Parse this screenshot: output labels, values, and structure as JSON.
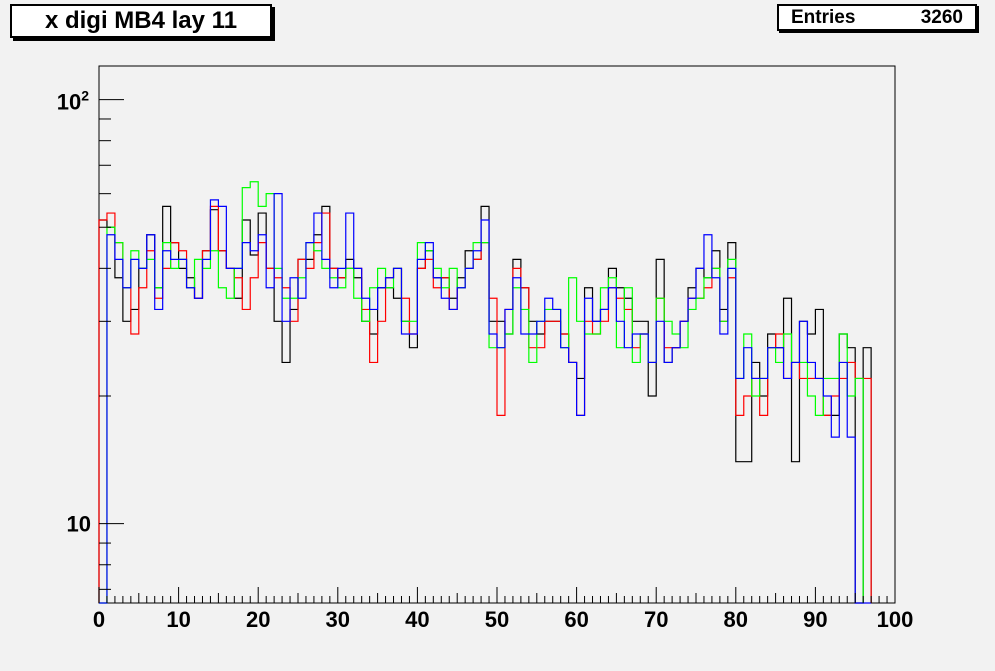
{
  "chart_data": {
    "type": "histogram-step",
    "title": "x digi MB4 lay 11",
    "stats": {
      "label": "Entries",
      "value": "3260"
    },
    "x_axis": {
      "range": [
        0,
        100
      ],
      "ticks": [
        0,
        10,
        20,
        30,
        40,
        50,
        60,
        70,
        80,
        90,
        100
      ],
      "tick_labels": [
        "0",
        "10",
        "20",
        "30",
        "40",
        "50",
        "60",
        "70",
        "80",
        "90",
        "100"
      ]
    },
    "y_axis": {
      "scale": "log",
      "range": [
        6.5,
        120
      ],
      "tick_labels": [
        {
          "value": 100,
          "base": "10",
          "exp": "2"
        },
        {
          "value": 10,
          "label": "10"
        }
      ]
    },
    "bin_start": 0,
    "bin_width": 1,
    "series": [
      {
        "color": "#000000",
        "values": [
          52,
          50,
          38,
          30,
          32,
          40,
          48,
          36,
          56,
          46,
          40,
          38,
          34,
          44,
          55,
          44,
          40,
          34,
          52,
          43,
          54,
          40,
          30,
          24,
          32,
          42,
          42,
          48,
          56,
          40,
          38,
          42,
          38,
          30,
          28,
          36,
          36,
          34,
          30,
          26,
          40,
          44,
          38,
          38,
          34,
          38,
          44,
          42,
          56,
          30,
          30,
          28,
          42,
          36,
          30,
          28,
          30,
          30,
          28,
          24,
          22,
          36,
          30,
          32,
          40,
          36,
          34,
          30,
          30,
          20,
          42,
          24,
          26,
          30,
          36,
          40,
          38,
          44,
          32,
          46,
          14,
          14,
          24,
          20,
          28,
          26,
          34,
          14,
          30,
          28,
          32,
          18,
          18,
          28,
          26,
          6,
          26
        ]
      },
      {
        "color": "#ff0000",
        "values": [
          52,
          54,
          46,
          36,
          28,
          36,
          44,
          34,
          40,
          46,
          44,
          36,
          34,
          44,
          56,
          44,
          40,
          38,
          32,
          38,
          46,
          40,
          38,
          36,
          30,
          42,
          40,
          46,
          54,
          40,
          38,
          40,
          40,
          32,
          24,
          30,
          38,
          40,
          34,
          28,
          40,
          42,
          36,
          38,
          32,
          36,
          40,
          42,
          46,
          34,
          18,
          32,
          40,
          36,
          26,
          26,
          30,
          30,
          28,
          24,
          18,
          30,
          28,
          30,
          36,
          34,
          32,
          26,
          28,
          24,
          34,
          26,
          26,
          30,
          34,
          34,
          36,
          40,
          30,
          38,
          18,
          20,
          22,
          18,
          26,
          28,
          22,
          24,
          22,
          22,
          22,
          18,
          20,
          22,
          24,
          22,
          22
        ]
      },
      {
        "color": "#00ff00",
        "values": [
          6,
          50,
          46,
          36,
          44,
          40,
          42,
          36,
          46,
          40,
          42,
          36,
          42,
          40,
          44,
          36,
          34,
          40,
          62,
          64,
          56,
          60,
          40,
          34,
          34,
          38,
          46,
          44,
          40,
          38,
          36,
          40,
          34,
          30,
          36,
          40,
          36,
          40,
          30,
          30,
          46,
          44,
          40,
          36,
          40,
          36,
          40,
          46,
          46,
          26,
          26,
          28,
          36,
          32,
          24,
          30,
          32,
          32,
          26,
          38,
          30,
          28,
          28,
          36,
          38,
          26,
          36,
          24,
          28,
          24,
          34,
          30,
          28,
          26,
          32,
          34,
          38,
          40,
          30,
          42,
          22,
          28,
          20,
          22,
          26,
          24,
          28,
          24,
          24,
          20,
          18,
          22,
          22,
          28,
          20,
          22
        ]
      },
      {
        "color": "#0000ff",
        "values": [
          6,
          48,
          42,
          36,
          42,
          40,
          48,
          32,
          44,
          42,
          42,
          36,
          34,
          42,
          58,
          56,
          40,
          40,
          46,
          44,
          48,
          36,
          60,
          30,
          38,
          34,
          46,
          54,
          42,
          36,
          40,
          54,
          40,
          34,
          32,
          36,
          38,
          40,
          28,
          28,
          42,
          46,
          38,
          34,
          32,
          36,
          40,
          44,
          52,
          28,
          26,
          32,
          38,
          28,
          28,
          30,
          34,
          32,
          26,
          24,
          18,
          34,
          30,
          32,
          36,
          30,
          26,
          28,
          28,
          24,
          30,
          24,
          26,
          30,
          34,
          40,
          48,
          38,
          28,
          40,
          22,
          26,
          22,
          22,
          26,
          26,
          22,
          24,
          30,
          24,
          22,
          20,
          16,
          24,
          16,
          6,
          6
        ]
      }
    ]
  }
}
